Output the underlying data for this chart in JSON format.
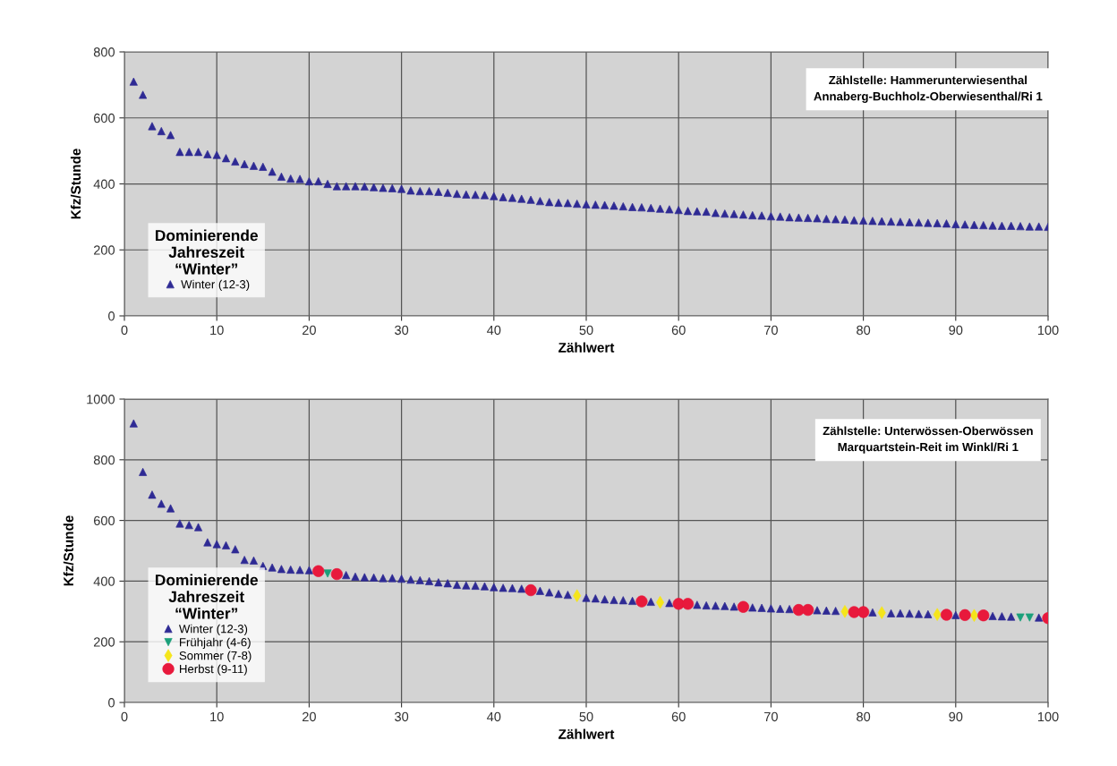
{
  "chart_data": [
    {
      "type": "scatter",
      "xlabel": "Zählwert",
      "ylabel": "Kfz/Stunde",
      "xlim": [
        0,
        100
      ],
      "xticks": [
        0,
        10,
        20,
        30,
        40,
        50,
        60,
        70,
        80,
        90,
        100
      ],
      "ylim": [
        0,
        800
      ],
      "yticks": [
        0,
        200,
        400,
        600,
        800
      ],
      "grid": true,
      "legend": "bottom left",
      "legend_title": "Dominierende\nJahreszeit\n“Winter”",
      "annotations": [
        "Zählstelle: Hammerunterwiesenthal\nAnnaberg-Buchholz-Oberwiesenthal/Ri 1"
      ],
      "series": [
        {
          "name": "Winter (12-3)",
          "color": "#2e2a94",
          "marker": "triangle",
          "x": [
            1,
            2,
            3,
            4,
            5,
            6,
            7,
            8,
            9,
            10,
            11,
            12,
            13,
            14,
            15,
            16,
            17,
            18,
            19,
            20,
            21,
            22,
            23,
            24,
            25,
            26,
            27,
            28,
            29,
            30,
            31,
            32,
            33,
            34,
            35,
            36,
            37,
            38,
            39,
            40,
            41,
            42,
            43,
            44,
            45,
            46,
            47,
            48,
            49,
            50,
            51,
            52,
            53,
            54,
            55,
            56,
            57,
            58,
            59,
            60,
            61,
            62,
            63,
            64,
            65,
            66,
            67,
            68,
            69,
            70,
            71,
            72,
            73,
            74,
            75,
            76,
            77,
            78,
            79,
            80,
            81,
            82,
            83,
            84,
            85,
            86,
            87,
            88,
            89,
            90,
            91,
            92,
            93,
            94,
            95,
            96,
            97,
            98,
            99,
            100
          ],
          "values": [
            710,
            670,
            575,
            560,
            548,
            497,
            497,
            497,
            490,
            488,
            478,
            468,
            460,
            455,
            452,
            437,
            422,
            416,
            415,
            408,
            408,
            400,
            393,
            393,
            393,
            392,
            390,
            388,
            387,
            385,
            380,
            378,
            378,
            376,
            373,
            370,
            368,
            367,
            366,
            363,
            360,
            358,
            355,
            352,
            348,
            345,
            343,
            342,
            340,
            338,
            337,
            336,
            334,
            332,
            330,
            329,
            327,
            325,
            323,
            321,
            318,
            317,
            316,
            312,
            310,
            309,
            307,
            305,
            304,
            302,
            301,
            299,
            298,
            297,
            296,
            294,
            293,
            292,
            290,
            289,
            288,
            287,
            286,
            285,
            284,
            283,
            282,
            281,
            280,
            278,
            277,
            276,
            275,
            274,
            273,
            273,
            272,
            271,
            271,
            270
          ]
        }
      ]
    },
    {
      "type": "scatter",
      "xlabel": "Zählwert",
      "ylabel": "Kfz/Stunde",
      "xlim": [
        0,
        100
      ],
      "xticks": [
        0,
        10,
        20,
        30,
        40,
        50,
        60,
        70,
        80,
        90,
        100
      ],
      "ylim": [
        0,
        1000
      ],
      "yticks": [
        0,
        200,
        400,
        600,
        800,
        1000
      ],
      "grid": true,
      "legend": "bottom left",
      "legend_title": "Dominierende\nJahreszeit\n“Winter”",
      "annotations": [
        "Zählstelle: Unterwössen-Oberwössen\nMarquartstein-Reit im Winkl/Ri 1"
      ],
      "series": [
        {
          "name": "Winter (12-3)",
          "color": "#2e2a94",
          "marker": "triangle",
          "x": [
            1,
            2,
            3,
            4,
            5,
            6,
            7,
            8,
            9,
            10,
            11,
            12,
            13,
            14,
            15,
            16,
            17,
            18,
            19,
            20,
            24,
            25,
            26,
            27,
            28,
            29,
            30,
            31,
            32,
            33,
            34,
            35,
            36,
            37,
            38,
            39,
            40,
            41,
            42,
            43,
            45,
            46,
            47,
            48,
            50,
            51,
            52,
            53,
            54,
            55,
            57,
            59,
            62,
            63,
            64,
            65,
            66,
            68,
            69,
            70,
            71,
            72,
            75,
            76,
            77,
            81,
            83,
            84,
            85,
            86,
            87,
            90,
            94,
            95,
            96,
            99
          ],
          "values": [
            920,
            760,
            685,
            655,
            640,
            590,
            585,
            578,
            528,
            522,
            518,
            505,
            470,
            468,
            450,
            445,
            440,
            438,
            437,
            436,
            420,
            415,
            413,
            412,
            410,
            410,
            408,
            405,
            403,
            400,
            396,
            393,
            388,
            386,
            385,
            383,
            380,
            378,
            377,
            375,
            368,
            363,
            358,
            355,
            345,
            343,
            340,
            338,
            337,
            335,
            332,
            328,
            322,
            320,
            319,
            318,
            316,
            313,
            312,
            310,
            309,
            308,
            304,
            303,
            302,
            297,
            294,
            294,
            293,
            292,
            291,
            288,
            285,
            284,
            283,
            280
          ]
        },
        {
          "name": "Frühjahr (4-6)",
          "color": "#1aa07a",
          "marker": "triangle_down",
          "x": [
            22,
            97,
            98
          ],
          "values": [
            425,
            280,
            280
          ]
        },
        {
          "name": "Sommer (7-8)",
          "color": "#f5e51b",
          "marker": "diamond",
          "x": [
            49,
            58,
            78,
            82,
            88,
            92
          ],
          "values": [
            352,
            330,
            300,
            296,
            290,
            287
          ]
        },
        {
          "name": "Herbst (9-11)",
          "color": "#e8193c",
          "marker": "circle",
          "x": [
            21,
            23,
            44,
            56,
            60,
            61,
            67,
            73,
            74,
            79,
            80,
            89,
            91,
            93,
            100
          ],
          "values": [
            433,
            423,
            370,
            333,
            325,
            325,
            315,
            305,
            305,
            298,
            298,
            289,
            288,
            287,
            278
          ]
        }
      ]
    }
  ]
}
